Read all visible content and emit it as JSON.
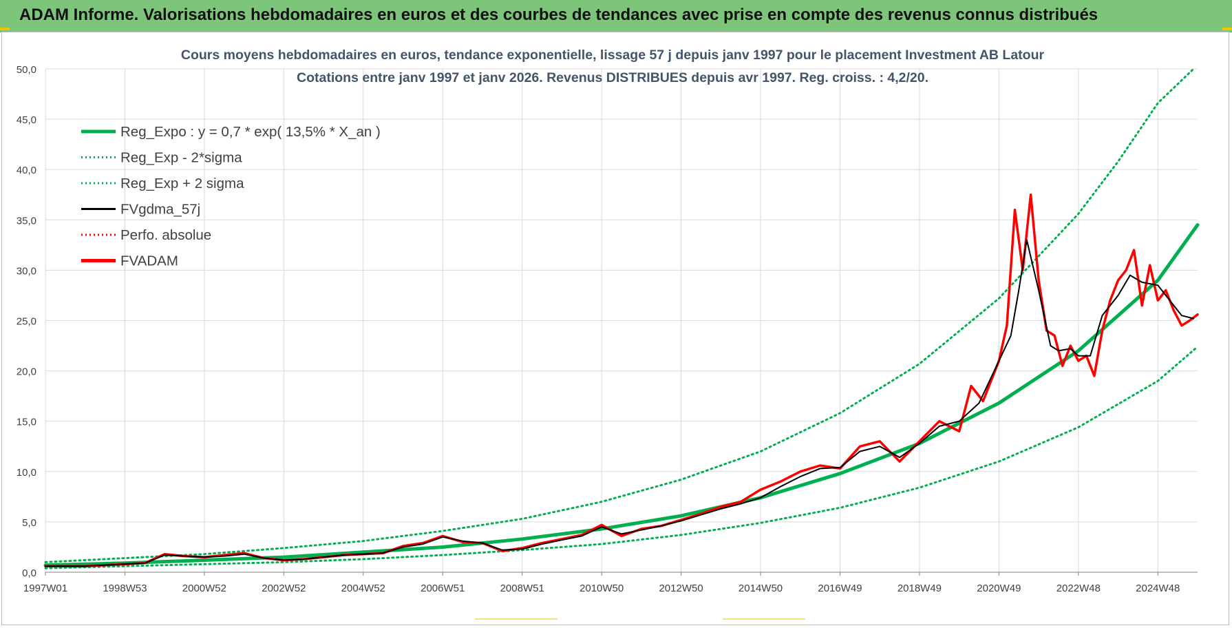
{
  "header": {
    "title": "ADAM Informe. Valorisations hebdomadaires en euros et des courbes de tendances avec prise en compte des revenus connus distribués"
  },
  "colors": {
    "header_bg": "#7dc57a",
    "trend": "#00b050",
    "price": "#ff0000",
    "smooth": "#000000",
    "grid": "#d9d9d9"
  },
  "chart_data": {
    "type": "line",
    "title": "Cours moyens hebdomadaires en euros, tendance exponentielle, lissage 57 j depuis janv 1997  pour le placement Investment AB Latour",
    "subtitle": "Cotations entre janv 1997 et janv 2026. Revenus DISTRIBUES depuis avr 1997. Reg. croiss. : 4,2/20.",
    "xlabel": "",
    "ylabel": "",
    "xlim": [
      1997.0,
      2026.0
    ],
    "ylim": [
      0,
      50
    ],
    "yticks": [
      "0,0",
      "5,0",
      "10,0",
      "15,0",
      "20,0",
      "25,0",
      "30,0",
      "35,0",
      "40,0",
      "45,0",
      "50,0"
    ],
    "xticks": [
      {
        "label": "1997W01",
        "x": 1997.0
      },
      {
        "label": "1998W53",
        "x": 1999.0
      },
      {
        "label": "2000W52",
        "x": 2001.0
      },
      {
        "label": "2002W52",
        "x": 2003.0
      },
      {
        "label": "2004W52",
        "x": 2005.0
      },
      {
        "label": "2006W51",
        "x": 2007.0
      },
      {
        "label": "2008W51",
        "x": 2009.0
      },
      {
        "label": "2010W50",
        "x": 2011.0
      },
      {
        "label": "2012W50",
        "x": 2013.0
      },
      {
        "label": "2014W50",
        "x": 2015.0
      },
      {
        "label": "2016W49",
        "x": 2017.0
      },
      {
        "label": "2018W49",
        "x": 2019.0
      },
      {
        "label": "2020W49",
        "x": 2021.0
      },
      {
        "label": "2022W48",
        "x": 2023.0
      },
      {
        "label": "2024W48",
        "x": 2025.0
      }
    ],
    "legend": {
      "placement": "top-left",
      "entries": [
        {
          "label": "Reg_Expo : y = 0,7 * exp( 13,5% *  X_an )",
          "color": "#00b050",
          "style": "solid-thick"
        },
        {
          "label": "Reg_Exp - 2*sigma",
          "color": "#00b050",
          "style": "dotted"
        },
        {
          "label": "Reg_Exp + 2 sigma",
          "color": "#00b050",
          "style": "dotted"
        },
        {
          "label": "FVgdma_57j",
          "color": "#000000",
          "style": "solid-thin"
        },
        {
          "label": "Perfo. absolue",
          "color": "#ff0000",
          "style": "dotted"
        },
        {
          "label": "FVADAM",
          "color": "#ff0000",
          "style": "solid-thick"
        }
      ]
    },
    "series": [
      {
        "name": "Reg_Expo",
        "x": [
          1997.0,
          1999.0,
          2001.0,
          2003.0,
          2005.0,
          2007.0,
          2009.0,
          2011.0,
          2013.0,
          2015.0,
          2017.0,
          2019.0,
          2021.0,
          2023.0,
          2025.0,
          2026.0
        ],
        "values": [
          0.7,
          0.9,
          1.2,
          1.5,
          2.0,
          2.5,
          3.3,
          4.3,
          5.6,
          7.4,
          9.8,
          12.8,
          16.8,
          22.0,
          29.0,
          34.5
        ]
      },
      {
        "name": "Reg_Exp - 2*sigma",
        "x": [
          1997.0,
          1999.0,
          2001.0,
          2003.0,
          2005.0,
          2007.0,
          2009.0,
          2011.0,
          2013.0,
          2015.0,
          2017.0,
          2019.0,
          2021.0,
          2023.0,
          2025.0,
          2026.0
        ],
        "values": [
          0.4,
          0.6,
          0.8,
          1.0,
          1.3,
          1.7,
          2.2,
          2.8,
          3.7,
          4.9,
          6.4,
          8.4,
          11.0,
          14.4,
          19.0,
          22.4
        ]
      },
      {
        "name": "Reg_Exp + 2 sigma",
        "x": [
          1997.0,
          1999.0,
          2001.0,
          2003.0,
          2005.0,
          2007.0,
          2009.0,
          2011.0,
          2013.0,
          2015.0,
          2017.0,
          2019.0,
          2021.0,
          2023.0,
          2024.0,
          2025.0,
          2025.9
        ],
        "values": [
          1.0,
          1.4,
          1.8,
          2.4,
          3.1,
          4.1,
          5.3,
          7.0,
          9.2,
          12.0,
          15.8,
          20.7,
          27.2,
          35.6,
          40.8,
          46.6,
          50.0
        ]
      },
      {
        "name": "FVgdma_57j",
        "x": [
          1997.0,
          1997.5,
          1998.0,
          1998.5,
          1999.0,
          1999.5,
          2000.0,
          2000.5,
          2001.0,
          2001.5,
          2002.0,
          2002.5,
          2003.0,
          2003.5,
          2004.0,
          2004.5,
          2005.0,
          2005.5,
          2006.0,
          2006.5,
          2007.0,
          2007.5,
          2008.0,
          2008.5,
          2009.0,
          2009.5,
          2010.0,
          2010.5,
          2011.0,
          2011.5,
          2012.0,
          2012.5,
          2013.0,
          2013.5,
          2014.0,
          2014.5,
          2015.0,
          2015.5,
          2016.0,
          2016.5,
          2017.0,
          2017.5,
          2018.0,
          2018.5,
          2019.0,
          2019.5,
          2020.0,
          2020.5,
          2021.0,
          2021.3,
          2021.5,
          2021.7,
          2022.0,
          2022.3,
          2022.5,
          2022.8,
          2023.0,
          2023.3,
          2023.6,
          2024.0,
          2024.3,
          2024.6,
          2025.0,
          2025.3,
          2025.6,
          2025.9
        ],
        "values": [
          0.6,
          0.6,
          0.6,
          0.7,
          0.8,
          0.9,
          1.7,
          1.6,
          1.5,
          1.6,
          1.8,
          1.4,
          1.2,
          1.3,
          1.5,
          1.7,
          1.8,
          1.9,
          2.5,
          2.8,
          3.5,
          3.1,
          2.9,
          2.2,
          2.3,
          2.8,
          3.2,
          3.6,
          4.5,
          3.8,
          4.2,
          4.6,
          5.1,
          5.7,
          6.3,
          6.8,
          7.4,
          8.5,
          9.5,
          10.3,
          10.4,
          12.0,
          12.5,
          11.4,
          12.8,
          14.5,
          15.0,
          16.8,
          21.0,
          23.5,
          28.0,
          33.0,
          28.0,
          22.5,
          22.0,
          22.2,
          21.5,
          21.5,
          25.5,
          27.5,
          29.5,
          28.8,
          28.5,
          27.0,
          25.5,
          25.2
        ]
      },
      {
        "name": "FVADAM",
        "x": [
          1997.0,
          1997.5,
          1998.0,
          1998.5,
          1999.0,
          1999.5,
          2000.0,
          2000.5,
          2001.0,
          2001.5,
          2002.0,
          2002.5,
          2003.0,
          2003.5,
          2004.0,
          2004.5,
          2005.0,
          2005.5,
          2006.0,
          2006.5,
          2007.0,
          2007.5,
          2008.0,
          2008.5,
          2009.0,
          2009.5,
          2010.0,
          2010.5,
          2011.0,
          2011.5,
          2012.0,
          2012.5,
          2013.0,
          2013.5,
          2014.0,
          2014.5,
          2015.0,
          2015.5,
          2016.0,
          2016.5,
          2017.0,
          2017.5,
          2018.0,
          2018.5,
          2019.0,
          2019.5,
          2020.0,
          2020.3,
          2020.6,
          2021.0,
          2021.2,
          2021.4,
          2021.6,
          2021.8,
          2022.0,
          2022.2,
          2022.4,
          2022.6,
          2022.8,
          2023.0,
          2023.2,
          2023.4,
          2023.6,
          2023.8,
          2024.0,
          2024.2,
          2024.4,
          2024.6,
          2024.8,
          2025.0,
          2025.2,
          2025.4,
          2025.6,
          2025.8,
          2026.0
        ],
        "values": [
          0.6,
          0.6,
          0.6,
          0.7,
          0.8,
          0.9,
          1.8,
          1.6,
          1.5,
          1.7,
          1.9,
          1.4,
          1.2,
          1.3,
          1.5,
          1.7,
          1.8,
          1.9,
          2.6,
          2.9,
          3.6,
          3.0,
          2.9,
          2.1,
          2.4,
          2.9,
          3.3,
          3.7,
          4.7,
          3.6,
          4.3,
          4.6,
          5.2,
          5.8,
          6.5,
          7.0,
          8.2,
          9.0,
          10.0,
          10.6,
          10.3,
          12.5,
          13.0,
          11.0,
          13.0,
          15.0,
          14.0,
          18.5,
          17.0,
          21.0,
          24.5,
          36.0,
          30.0,
          37.5,
          29.0,
          24.0,
          23.5,
          20.5,
          22.5,
          21.0,
          21.5,
          19.5,
          24.0,
          27.0,
          29.0,
          30.0,
          32.0,
          26.5,
          30.5,
          27.0,
          28.0,
          26.0,
          24.5,
          25.0,
          25.6
        ]
      }
    ]
  }
}
